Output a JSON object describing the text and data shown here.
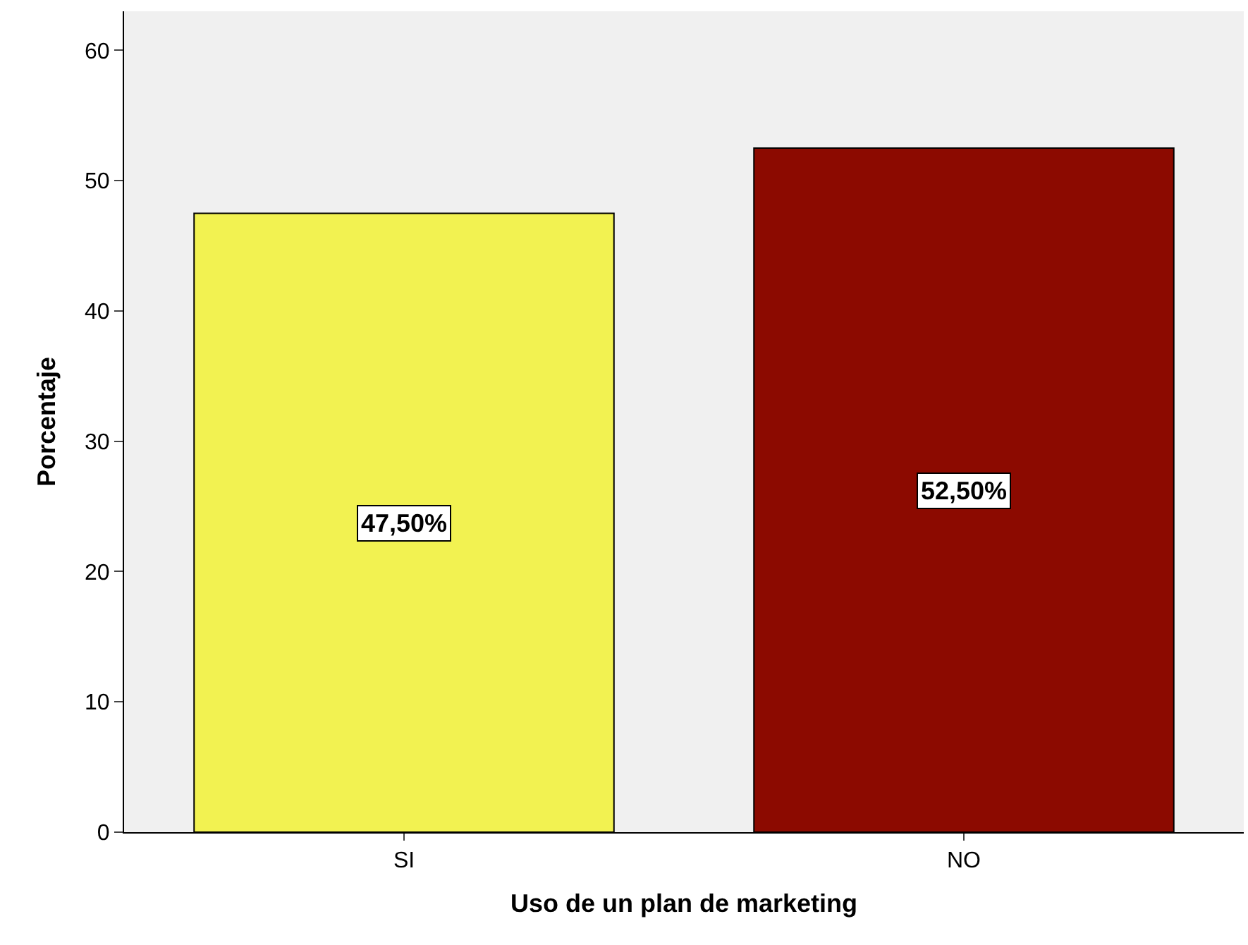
{
  "chart_data": {
    "type": "bar",
    "xlabel": "Uso de un plan de marketing",
    "ylabel": "Porcentaje",
    "categories": [
      "SI",
      "NO"
    ],
    "values": [
      47.5,
      52.5
    ],
    "colors": [
      "#f2f251",
      "#8c0a00"
    ],
    "value_labels": [
      "47,50%",
      "52,50%"
    ],
    "ylim": [
      0,
      63
    ],
    "yticks": [
      0,
      10,
      20,
      30,
      40,
      50,
      60
    ],
    "grid": false,
    "legend": false
  }
}
